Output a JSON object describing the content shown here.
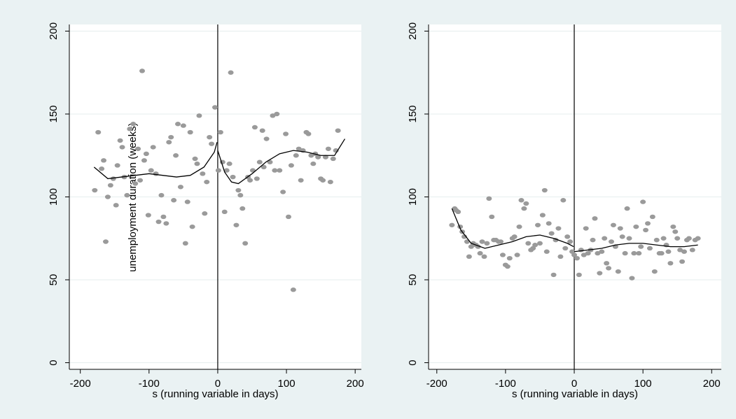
{
  "chart_data": [
    {
      "type": "scatter",
      "ylabel": "unemployment duration (weeks)",
      "xlabel": "s (running variable in days)",
      "xlim": [
        -216,
        209
      ],
      "ylim": [
        -4,
        204
      ],
      "xticks": [
        -200,
        -100,
        0,
        100,
        200
      ],
      "yticks": [
        0,
        50,
        100,
        150,
        200
      ],
      "grid": true,
      "vline": 0,
      "series": [
        {
          "type": "scatter",
          "color": "#9a9a9a",
          "x": [
            -179,
            -174,
            -169,
            -166,
            -163,
            -160,
            -156,
            -152,
            -148,
            -146,
            -142,
            -139,
            -136,
            -132,
            -128,
            -123,
            -120,
            -116,
            -113,
            -110,
            -107,
            -104,
            -101,
            -97,
            -94,
            -90,
            -86,
            -82,
            -79,
            -75,
            -71,
            -68,
            -64,
            -61,
            -58,
            -54,
            -50,
            -47,
            -44,
            -40,
            -37,
            -33,
            -30,
            -27,
            -22,
            -19,
            -16,
            -12,
            -9,
            -4,
            1,
            4,
            7,
            10,
            13,
            17,
            19,
            22,
            27,
            30,
            33,
            36,
            40,
            44,
            47,
            51,
            54,
            57,
            61,
            65,
            67,
            71,
            76,
            80,
            83,
            86,
            90,
            95,
            99,
            103,
            107,
            110,
            114,
            118,
            121,
            124,
            129,
            132,
            136,
            139,
            142,
            146,
            150,
            153,
            157,
            161,
            164,
            168,
            172,
            175
          ],
          "values": [
            104,
            139,
            117,
            122,
            73,
            100,
            107,
            111,
            95,
            119,
            134,
            130,
            112,
            101,
            141,
            144,
            108,
            129,
            110,
            176,
            122,
            126,
            89,
            116,
            130,
            114,
            85,
            101,
            88,
            84,
            133,
            136,
            98,
            125,
            144,
            106,
            143,
            72,
            97,
            139,
            82,
            123,
            120,
            149,
            114,
            90,
            109,
            136,
            132,
            154,
            116,
            139,
            121,
            91,
            116,
            120,
            175,
            112,
            83,
            104,
            101,
            93,
            72,
            112,
            110,
            116,
            142,
            111,
            121,
            140,
            118,
            135,
            121,
            149,
            116,
            150,
            116,
            103,
            138,
            88,
            119,
            44,
            125,
            129,
            110,
            128,
            139,
            138,
            125,
            120,
            126,
            124,
            111,
            110,
            124,
            129,
            109,
            123,
            128,
            140
          ]
        },
        {
          "type": "line",
          "color": "#000000",
          "x": [
            -180,
            -160,
            -140,
            -120,
            -100,
            -80,
            -60,
            -40,
            -20,
            -5,
            -1
          ],
          "values": [
            118,
            111,
            112,
            113,
            114,
            113,
            112,
            113,
            118,
            127,
            133
          ]
        },
        {
          "type": "line",
          "color": "#000000",
          "x": [
            0,
            10,
            20,
            30,
            50,
            70,
            90,
            110,
            130,
            150,
            170,
            185
          ],
          "values": [
            128,
            115,
            109,
            108,
            114,
            121,
            126,
            128,
            127,
            125,
            125,
            135
          ]
        }
      ]
    },
    {
      "type": "scatter",
      "xlabel": "s (running variable in days)",
      "xlim": [
        -212,
        214
      ],
      "ylim": [
        -4,
        204
      ],
      "xticks": [
        -200,
        -100,
        0,
        100,
        200
      ],
      "yticks": [
        0,
        50,
        100,
        150,
        200
      ],
      "grid": true,
      "vline": 0,
      "series": [
        {
          "type": "scatter",
          "color": "#9a9a9a",
          "x": [
            -178,
            -174,
            -172,
            -169,
            -166,
            -163,
            -160,
            -156,
            -153,
            -150,
            -147,
            -143,
            -140,
            -137,
            -134,
            -131,
            -127,
            -124,
            -120,
            -117,
            -114,
            -110,
            -107,
            -104,
            -100,
            -97,
            -94,
            -90,
            -87,
            -83,
            -80,
            -77,
            -73,
            -70,
            -67,
            -63,
            -60,
            -57,
            -53,
            -50,
            -46,
            -43,
            -40,
            -37,
            -33,
            -30,
            -27,
            -23,
            -20,
            -16,
            -13,
            -10,
            -6,
            -3,
            0,
            4,
            7,
            10,
            14,
            17,
            20,
            24,
            27,
            30,
            34,
            37,
            40,
            44,
            47,
            50,
            54,
            57,
            60,
            64,
            67,
            70,
            74,
            77,
            80,
            84,
            87,
            90,
            94,
            97,
            100,
            104,
            107,
            110,
            114,
            117,
            120,
            124,
            127,
            130,
            134,
            137,
            140,
            144,
            147,
            150,
            154,
            157,
            160,
            164,
            167,
            172,
            176,
            180
          ],
          "values": [
            83,
            93,
            92,
            91,
            82,
            79,
            76,
            73,
            64,
            70,
            72,
            71,
            70,
            66,
            73,
            64,
            72,
            99,
            88,
            74,
            74,
            73,
            73,
            65,
            59,
            58,
            63,
            75,
            76,
            65,
            82,
            98,
            93,
            96,
            72,
            68,
            69,
            71,
            83,
            72,
            89,
            104,
            67,
            84,
            78,
            53,
            74,
            81,
            64,
            98,
            69,
            76,
            73,
            67,
            65,
            63,
            53,
            68,
            65,
            81,
            66,
            68,
            74,
            87,
            66,
            54,
            67,
            75,
            60,
            57,
            73,
            83,
            70,
            55,
            81,
            76,
            66,
            93,
            75,
            51,
            66,
            82,
            66,
            70,
            97,
            80,
            84,
            69,
            88,
            55,
            74,
            66,
            66,
            75,
            71,
            67,
            60,
            82,
            79,
            75,
            68,
            61,
            67,
            74,
            75,
            68,
            74,
            75
          ]
        },
        {
          "type": "line",
          "color": "#000000",
          "x": [
            -178,
            -165,
            -150,
            -130,
            -110,
            -90,
            -70,
            -50,
            -30,
            -10,
            -1
          ],
          "values": [
            93,
            80,
            72,
            69,
            71,
            73,
            76,
            77,
            75,
            72,
            70
          ]
        },
        {
          "type": "line",
          "color": "#000000",
          "x": [
            0,
            20,
            40,
            60,
            80,
            100,
            120,
            140,
            160,
            180
          ],
          "values": [
            67,
            68,
            69,
            71,
            72,
            72,
            71,
            70,
            70,
            71
          ]
        }
      ]
    }
  ]
}
